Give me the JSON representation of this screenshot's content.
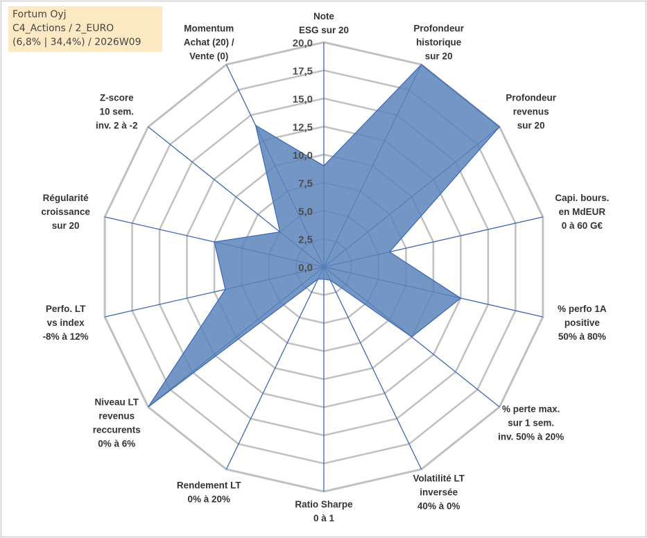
{
  "info": {
    "line1": "Fortum Oyj",
    "line2": "C4_Actions / 2_EURO",
    "line3": "(6,8% | 34,4%) / 2026W09"
  },
  "colors": {
    "fill": "#5a84bb",
    "fill_opacity": 0.85,
    "spoke": "#3a66b5",
    "grid": "#c0c0c0",
    "info_background": "#fde9c3"
  },
  "chart_data": {
    "type": "radar",
    "range": [
      0,
      20
    ],
    "ticks": [
      "0,0",
      "2,5",
      "5,0",
      "7,5",
      "10,0",
      "12,5",
      "15,0",
      "17,5",
      "20,0"
    ],
    "grid": true,
    "axes": [
      {
        "label": [
          "Note",
          "ESG sur 20"
        ],
        "value": 9
      },
      {
        "label": [
          "Profondeur",
          "historique",
          "sur 20"
        ],
        "value": 20
      },
      {
        "label": [
          "Profondeur",
          "revenus",
          "sur 20"
        ],
        "value": 20
      },
      {
        "label": [
          "Capi. bours.",
          "en MdEUR",
          "0 à 60 G€"
        ],
        "value": 6
      },
      {
        "label": [
          "% perfo 1A",
          "positive",
          "50% à 80%"
        ],
        "value": 12.5
      },
      {
        "label": [
          "% perte max.",
          "sur 1 sem.",
          "inv. 50% à 20%"
        ],
        "value": 10
      },
      {
        "label": [
          "Volatilité LT",
          "inversée",
          "40% à 0%"
        ],
        "value": 1.3
      },
      {
        "label": [
          "Ratio Sharpe",
          "0 à 1"
        ],
        "value": 1.1
      },
      {
        "label": [
          "Rendement LT",
          "0% à 20%"
        ],
        "value": 1.2
      },
      {
        "label": [
          "Niveau LT",
          "revenus",
          "reccurents",
          "0% à 6%"
        ],
        "value": 20
      },
      {
        "label": [
          "Perfo. LT",
          "vs index",
          "-8% à 12%"
        ],
        "value": 9
      },
      {
        "label": [
          "Régularité",
          "croissance",
          "sur 20"
        ],
        "value": 10
      },
      {
        "label": [
          "Z-score",
          "10 sem.",
          "inv. 2 à -2"
        ],
        "value": 5
      },
      {
        "label": [
          "Momentum",
          "Achat (20) /",
          "Vente (0)"
        ],
        "value": 14
      }
    ]
  }
}
